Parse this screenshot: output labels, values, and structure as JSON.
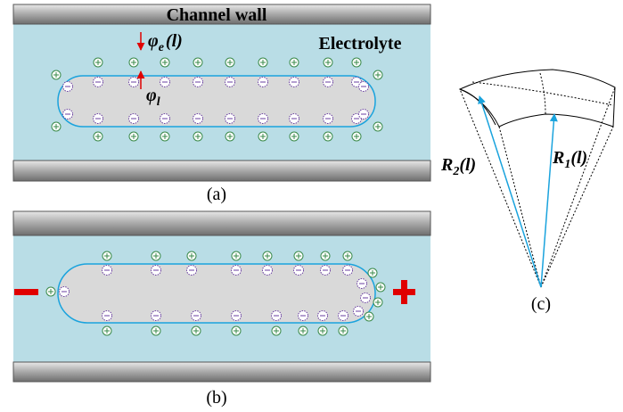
{
  "panel_a": {
    "wall_label": "Channel wall",
    "medium_label": "Electrolyte",
    "outer_potential": {
      "symbol": "φ",
      "sub": "e",
      "arg": "(l)"
    },
    "inner_potential": {
      "symbol": "φ",
      "sub": "l"
    },
    "caption": "(a)"
  },
  "panel_b": {
    "caption": "(b)"
  },
  "panel_c": {
    "radius_2": {
      "symbol": "R",
      "sub": "2",
      "arg": "(l)"
    },
    "radius_1": {
      "symbol": "R",
      "sub": "1",
      "arg": "(l)"
    },
    "caption": "(c)"
  }
}
